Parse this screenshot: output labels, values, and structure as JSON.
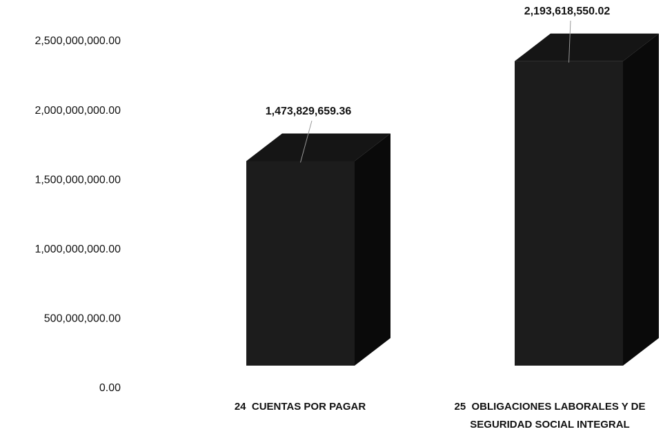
{
  "chart_data": {
    "type": "bar3d",
    "categories": [
      "24  CUENTAS POR PAGAR",
      "25  OBLIGACIONES LABORALES Y DE SEGURIDAD SOCIAL INTEGRAL"
    ],
    "values": [
      1473829659.36,
      2193618550.02
    ],
    "value_labels": [
      "1,473,829,659.36",
      "2,193,618,550.02"
    ],
    "color": "#1c1c1c",
    "ylim": [
      0,
      2500000000
    ],
    "yticks": [
      {
        "value": 0,
        "label": "0.00"
      },
      {
        "value": 500000000,
        "label": "500,000,000.00"
      },
      {
        "value": 1000000000,
        "label": "1,000,000,000.00"
      },
      {
        "value": 1500000000,
        "label": "1,500,000,000.00"
      },
      {
        "value": 2000000000,
        "label": "2,000,000,000.00"
      },
      {
        "value": 2500000000,
        "label": "2,500,000,000.00"
      }
    ],
    "grid": false
  }
}
